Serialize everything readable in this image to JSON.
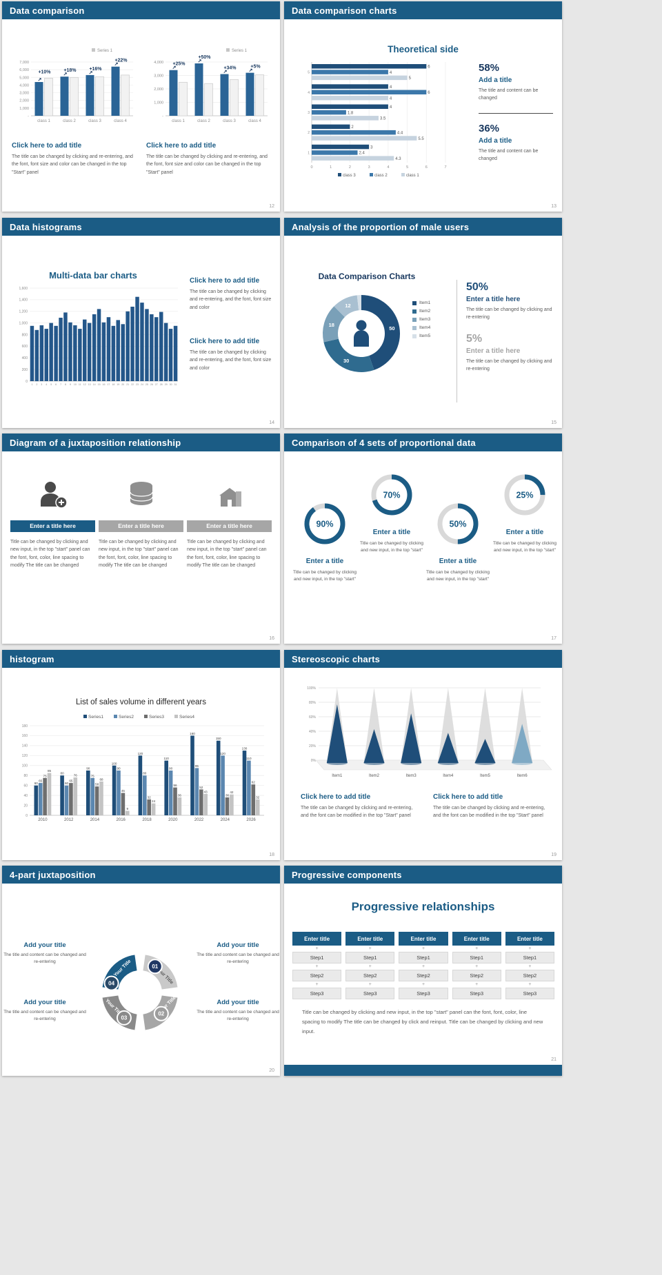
{
  "theme": {
    "page_bg": "#e7e7e7",
    "header_bg": "#1b5c85",
    "dark": "#1f4e79",
    "text_gray": "#595959"
  },
  "slides": {
    "s12": {
      "header": "Data comparison",
      "page": "12",
      "charts": [
        {
          "legend": "Series 1",
          "bar_color": "#2a6496",
          "ytop": 7000,
          "yticks": [
            "7,000",
            "6,000",
            "5,000",
            "4,000",
            "3,000",
            "2,000",
            "1,000"
          ],
          "categories": [
            "class 1",
            "class 2",
            "class 3",
            "class 4"
          ],
          "blue": [
            4400,
            5100,
            5300,
            6400
          ],
          "gray": [
            4900,
            5000,
            5100,
            5300
          ],
          "callouts": [
            "+10%",
            "+18%",
            "+16%",
            "+22%"
          ]
        },
        {
          "legend": "Series 1",
          "bar_color": "#2a6496",
          "ytop": 4000,
          "yticks": [
            "4,000",
            "3,000",
            "2,000",
            "1,000"
          ],
          "categories": [
            "class 1",
            "class 2",
            "class 3",
            "class 4"
          ],
          "blue": [
            3400,
            3900,
            3100,
            3200
          ],
          "gray": [
            2500,
            2400,
            2700,
            3050
          ],
          "callouts": [
            "+25%",
            "+50%",
            "+34%",
            "+5%"
          ]
        }
      ],
      "blocks": [
        {
          "heading": "Click here to add title",
          "body": "The title can be changed by clicking and re-entering, and the font, font size and color can be changed in the top \"Start\" panel"
        },
        {
          "heading": "Click here to add title",
          "body": "The title can be changed by clicking and re-entering, and the font, font size and color can be changed in the top \"Start\" panel"
        }
      ]
    },
    "s13": {
      "header": "Data comparison charts",
      "page": "13",
      "chart_title": "Theoretical side",
      "xmax": 7,
      "groups": [
        "5",
        "4",
        "3",
        "2",
        "1"
      ],
      "series": [
        {
          "name": "class 3",
          "color": "#1f4e79",
          "values": [
            6,
            4,
            4,
            2,
            3
          ]
        },
        {
          "name": "class 2",
          "color": "#3c78aa",
          "values": [
            4,
            6,
            1.8,
            4.4,
            2.4
          ]
        },
        {
          "name": "class 1",
          "color": "#c6d3df",
          "values": [
            5,
            4,
            3.5,
            5.5,
            4.3
          ]
        }
      ],
      "stats": [
        {
          "pct": "58%",
          "title": "Add a title",
          "body": "The title and content can be changed"
        },
        {
          "pct": "36%",
          "title": "Add a title",
          "body": "The title and content can be changed"
        }
      ]
    },
    "s14": {
      "header": "Data histograms",
      "page": "14",
      "chart_title": "Multi-data bar charts",
      "bar_color": "#24578a",
      "ymax": 1600,
      "yticks": [
        "1,600",
        "1,400",
        "1,200",
        "1,000",
        "800",
        "600",
        "400",
        "200",
        "0"
      ],
      "xlabels": [
        "1",
        "2",
        "3",
        "4",
        "5",
        "6",
        "7",
        "8",
        "9",
        "10",
        "11",
        "12",
        "13",
        "14",
        "15",
        "16",
        "17",
        "18",
        "19",
        "20",
        "21",
        "22",
        "23",
        "24",
        "25",
        "26",
        "27",
        "28",
        "29",
        "30",
        "31"
      ],
      "values": [
        950,
        880,
        960,
        900,
        1000,
        950,
        1090,
        1180,
        1010,
        960,
        900,
        1060,
        1000,
        1150,
        1240,
        1010,
        1100,
        950,
        1050,
        980,
        1200,
        1280,
        1450,
        1350,
        1240,
        1150,
        1100,
        1190,
        1000,
        900,
        950
      ],
      "blocks": [
        {
          "heading": "Click here to add title",
          "body": "The title can be changed by clicking and re-entering, and the font, font size and color"
        },
        {
          "heading": "Click here to add title",
          "body": "The title can be changed by clicking and re-entering, and the font, font size and color"
        }
      ]
    },
    "s15": {
      "header": "Analysis of the proportion of male users",
      "page": "15",
      "chart_title": "Data Comparison Charts",
      "donut": {
        "values": [
          50,
          30,
          18,
          12,
          2
        ],
        "labels": [
          "50",
          "30",
          "18",
          "12",
          ""
        ],
        "colors": [
          "#1f4e79",
          "#2f6b8f",
          "#7aa0b8",
          "#a9c0d1",
          "#d6e0e8"
        ],
        "legend": [
          "Item1",
          "Item2",
          "Item3",
          "Item4",
          "Item5"
        ]
      },
      "stats": [
        {
          "pct": "50%",
          "color": "#1f4e79",
          "title": "Enter a title here",
          "body": "The title can be changed by clicking and re-entering"
        },
        {
          "pct": "5%",
          "color": "#a6a6a6",
          "title": "Enter a title here",
          "body": "The title can be changed by clicking and re-entering"
        }
      ]
    },
    "s16": {
      "header": "Diagram of a juxtaposition relationship",
      "page": "16",
      "items": [
        {
          "heading": "Enter a title here",
          "bar": "#1b5c85",
          "body": "Title can be changed by clicking and new input, in the top \"start\" panel can the font, font, color, line spacing to modify The title can be changed"
        },
        {
          "heading": "Enter a title here",
          "bar": "#a6a6a6",
          "body": "Title can be changed by clicking and new input, in the top \"start\" panel can the font, font, color, line spacing to modify The title can be changed"
        },
        {
          "heading": "Enter a title here",
          "bar": "#a6a6a6",
          "body": "Title can be changed by clicking and new input, in the top \"start\" panel can the font, font, color, line spacing to modify The title can be changed"
        }
      ]
    },
    "s17": {
      "header": "Comparison of 4 sets of proportional data",
      "page": "17",
      "rings": [
        {
          "pct": 90,
          "label": "90%",
          "title": "Enter a title",
          "body": "Title can be changed by clicking and new input, in the top \"start\""
        },
        {
          "pct": 70,
          "label": "70%",
          "title": "Enter a title",
          "body": "Title can be changed by clicking and new input, in the top \"start\""
        },
        {
          "pct": 50,
          "label": "50%",
          "title": "Enter a title",
          "body": "Title can be changed by clicking and new input, in the top \"start\""
        },
        {
          "pct": 25,
          "label": "25%",
          "title": "Enter a title",
          "body": "Title can be changed by clicking and new input, in the top \"start\""
        }
      ]
    },
    "s18": {
      "header": "histogram",
      "page": "18",
      "chart_title": "List of sales volume in different years",
      "ymax": 180,
      "yticks": [
        "180",
        "160",
        "140",
        "120",
        "100",
        "80",
        "60",
        "40",
        "20",
        "0"
      ],
      "categories": [
        "2010",
        "2012",
        "2014",
        "2016",
        "2018",
        "2020",
        "2022",
        "2024",
        "2026"
      ],
      "series": [
        {
          "name": "Series1",
          "color": "#1f4e79",
          "values": [
            60,
            80,
            90,
            100,
            120,
            110,
            160,
            150,
            130
          ]
        },
        {
          "name": "Series2",
          "color": "#5b87b0",
          "values": [
            65,
            60,
            75,
            90,
            80,
            90,
            95,
            120,
            110
          ]
        },
        {
          "name": "Series3",
          "color": "#6e6e6e",
          "values": [
            75,
            65,
            58,
            45,
            32,
            56,
            52,
            36,
            62
          ]
        },
        {
          "name": "Series4",
          "color": "#c3c3c3",
          "values": [
            85,
            76,
            68,
            9,
            24,
            36,
            43,
            42,
            32
          ]
        }
      ]
    },
    "s19": {
      "header": "Stereoscopic charts",
      "page": "19",
      "yticks": [
        "100%",
        "80%",
        "60%",
        "40%",
        "20%",
        "0%"
      ],
      "items": [
        "Item1",
        "Item2",
        "Item3",
        "Item4",
        "Item5",
        "Item6"
      ],
      "values": [
        78,
        45,
        66,
        40,
        32,
        52
      ],
      "colors": [
        "#1f4e79",
        "#1f4e79",
        "#1f4e79",
        "#1f4e79",
        "#1f4e79",
        "#7fa9c4"
      ],
      "blocks": [
        {
          "heading": "Click here to add title",
          "body": "The title can be changed by clicking and re-entering, and the font can be modified in the top \"Start\" panel"
        },
        {
          "heading": "Click here to add title",
          "body": "The title can be changed by clicking and re-entering, and the font can be modified in the top \"Start\" panel"
        }
      ]
    },
    "s20": {
      "header": "4-part juxtaposition",
      "page": "20",
      "ring": {
        "segments": [
          {
            "num": "01",
            "label": "Your Title",
            "color": "#c9c9c9",
            "badge": "#203864",
            "text_color": "#595959"
          },
          {
            "num": "02",
            "label": "Your Title",
            "color": "#a6a6a6",
            "badge": "#9d9d9d",
            "text_color": "#ffffff"
          },
          {
            "num": "03",
            "label": "Your Title",
            "color": "#8a8a8a",
            "badge": "#8a8a8a",
            "text_color": "#ffffff"
          },
          {
            "num": "04",
            "label": "Your Title",
            "color": "#1b5c85",
            "badge": "#2a4a68",
            "text_color": "#ffffff"
          }
        ]
      },
      "blocks": [
        {
          "heading": "Add your title",
          "body": "The title and content can be changed and re-entering"
        },
        {
          "heading": "Add your title",
          "body": "The title and content can be changed and re-entering"
        },
        {
          "heading": "Add your title",
          "body": "The title and content can be changed and re-entering"
        },
        {
          "heading": "Add your title",
          "body": "The title and content can be changed and re-entering"
        }
      ]
    },
    "s21": {
      "header": "Progressive components",
      "page": "21",
      "chart_title": "Progressive relationships",
      "columns": [
        {
          "header": "Enter title",
          "steps": [
            "Step1",
            "Step2",
            "Step3"
          ]
        },
        {
          "header": "Enter title",
          "steps": [
            "Step1",
            "Step2",
            "Step3"
          ]
        },
        {
          "header": "Enter title",
          "steps": [
            "Step1",
            "Step2",
            "Step3"
          ]
        },
        {
          "header": "Enter title",
          "steps": [
            "Step1",
            "Step2",
            "Step3"
          ]
        },
        {
          "header": "Enter title",
          "steps": [
            "Step1",
            "Step2",
            "Step3"
          ]
        }
      ],
      "body": "Title can be changed by clicking and new input, in the top \"start\" panel can the font, font, color, line spacing to modify The title can be changed by click and reinput. Title can be changed by clicking and new input."
    }
  }
}
